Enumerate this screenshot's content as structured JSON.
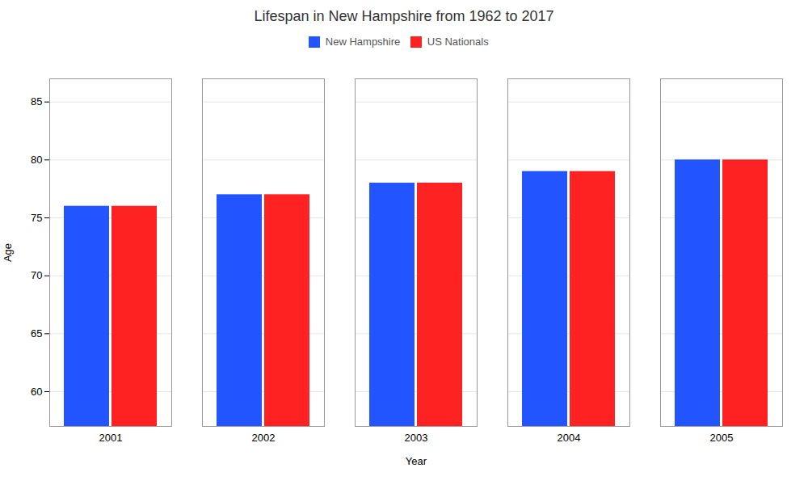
{
  "chart_data": {
    "type": "bar",
    "title": "Lifespan in New Hampshire from 1962 to 2017",
    "xlabel": "Year",
    "ylabel": "Age",
    "categories": [
      "2001",
      "2002",
      "2003",
      "2004",
      "2005"
    ],
    "series": [
      {
        "name": "New Hampshire",
        "color": "#2255ff",
        "values": [
          76,
          77,
          78,
          79,
          80
        ]
      },
      {
        "name": "US Nationals",
        "color": "#ff2222",
        "values": [
          76,
          77,
          78,
          79,
          80
        ]
      }
    ],
    "ylim": [
      57,
      87
    ],
    "yticks": [
      60,
      65,
      70,
      75,
      80,
      85
    ],
    "grid": true,
    "legend": "top"
  }
}
